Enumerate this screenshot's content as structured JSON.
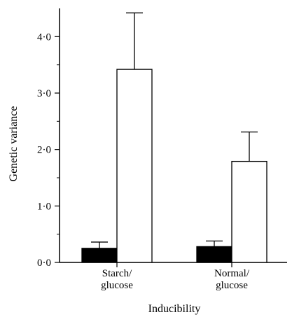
{
  "chart_data": {
    "type": "bar",
    "categories": [
      "Starch/\nglucose",
      "Normal/\nglucose"
    ],
    "series": [
      {
        "fill": "#000000",
        "values": [
          0.25,
          0.28
        ],
        "errors": [
          0.11,
          0.1
        ]
      },
      {
        "fill": "#ffffff",
        "values": [
          3.42,
          1.79
        ],
        "errors": [
          1.0,
          0.52
        ]
      }
    ],
    "xlabel": "Inducibility",
    "ylabel": "Genetic variance",
    "ylim": [
      0,
      4.5
    ],
    "yticks": [
      "0·0",
      "1·0",
      "2·0",
      "3·0",
      "4·0"
    ],
    "ytick_values": [
      0,
      1,
      2,
      3,
      4
    ],
    "grid": false,
    "legend": "none"
  }
}
